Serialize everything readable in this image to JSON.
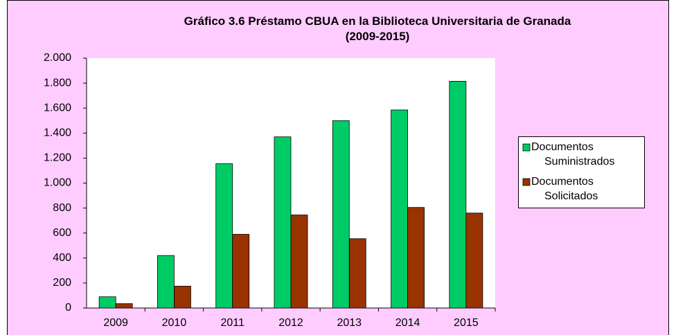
{
  "chart_data": {
    "type": "bar",
    "title": "Gráfico 3.6 Préstamo CBUA en la Biblioteca Universitaria de Granada (2009-2015)",
    "categories": [
      "2009",
      "2010",
      "2011",
      "2012",
      "2013",
      "2014",
      "2015"
    ],
    "series": [
      {
        "name": "Documentos Suministrados",
        "color": "#00cc66",
        "values": [
          90,
          420,
          1155,
          1370,
          1500,
          1585,
          1815
        ]
      },
      {
        "name": "Documentos Solicitados",
        "color": "#993300",
        "values": [
          35,
          175,
          590,
          745,
          555,
          805,
          760
        ]
      }
    ],
    "ylim": [
      0,
      2000
    ],
    "yticks": [
      0,
      200,
      400,
      600,
      800,
      {
        "value": 1000,
        "label": "1.000"
      },
      {
        "value": 1200,
        "label": "1.200"
      },
      {
        "value": 1400,
        "label": "1.400"
      },
      {
        "value": 1600,
        "label": "1.600"
      },
      {
        "value": 1800,
        "label": "1.800"
      },
      {
        "value": 2000,
        "label": "2.000"
      }
    ],
    "legend": "right"
  }
}
